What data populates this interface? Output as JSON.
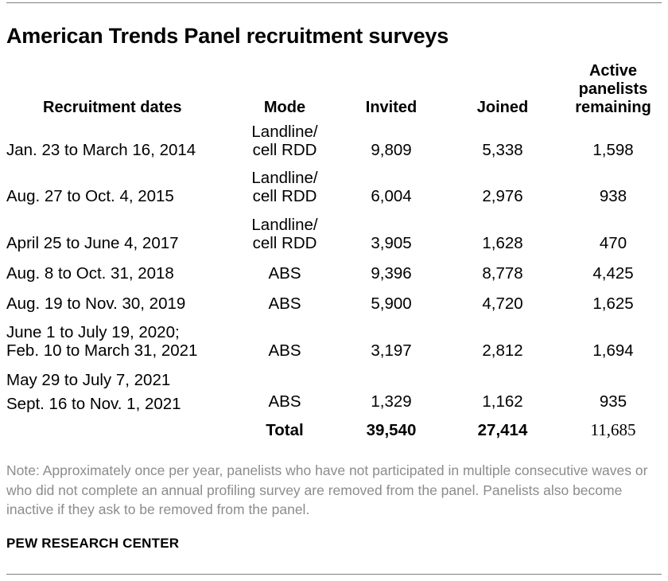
{
  "title": "American Trends Panel recruitment surveys",
  "headers": {
    "dates": "Recruitment dates",
    "mode": "Mode",
    "invited": "Invited",
    "joined": "Joined",
    "active_lines": [
      "Active",
      "panelists",
      "remaining"
    ]
  },
  "rows": [
    {
      "dates": [
        "Jan. 23 to March 16, 2014"
      ],
      "mode": [
        "Landline/",
        "cell RDD"
      ],
      "invited": "9,809",
      "joined": "5,338",
      "active": "1,598"
    },
    {
      "dates": [
        "Aug. 27 to Oct. 4, 2015"
      ],
      "mode": [
        "Landline/",
        "cell RDD"
      ],
      "invited": "6,004",
      "joined": "2,976",
      "active": "938"
    },
    {
      "dates": [
        "April 25 to June 4, 2017"
      ],
      "mode": [
        "Landline/",
        "cell RDD"
      ],
      "invited": "3,905",
      "joined": "1,628",
      "active": "470"
    },
    {
      "dates": [
        "Aug. 8 to Oct. 31, 2018"
      ],
      "mode": [
        "ABS"
      ],
      "invited": "9,396",
      "joined": "8,778",
      "active": "4,425"
    },
    {
      "dates": [
        "Aug. 19 to Nov. 30, 2019"
      ],
      "mode": [
        "ABS"
      ],
      "invited": "5,900",
      "joined": "4,720",
      "active": "1,625"
    },
    {
      "dates": [
        "June 1 to July 19, 2020;",
        "Feb. 10 to March 31, 2021"
      ],
      "mode": [
        "ABS"
      ],
      "invited": "3,197",
      "joined": "2,812",
      "active": "1,694"
    },
    {
      "dates": [
        "May 29 to July 7, 2021",
        "Sept. 16 to Nov. 1, 2021"
      ],
      "mode": [
        "ABS"
      ],
      "invited": "1,329",
      "joined": "1,162",
      "active": "935"
    }
  ],
  "total": {
    "label": "Total",
    "invited": "39,540",
    "joined": "27,414",
    "active": "11,685"
  },
  "note": "Note: Approximately once per year, panelists who have not participated in multiple consecutive waves or who did not complete an annual profiling survey are removed from the panel. Panelists also become inactive if they ask to be removed from the panel.",
  "source": "PEW RESEARCH CENTER"
}
